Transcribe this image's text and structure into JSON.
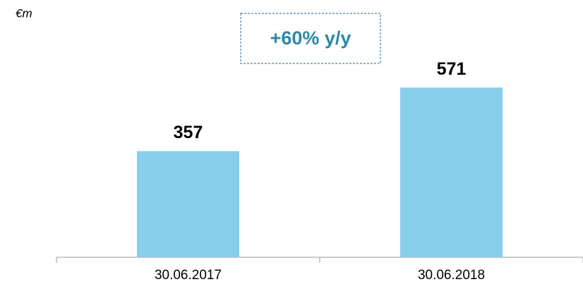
{
  "chart_data": {
    "type": "bar",
    "unit_label": "€m",
    "annotation": "+60% y/y",
    "categories": [
      "30.06.2017",
      "30.06.2018"
    ],
    "values": [
      357,
      571
    ],
    "color": "#87ceeb",
    "ylim": [
      0,
      600
    ]
  }
}
